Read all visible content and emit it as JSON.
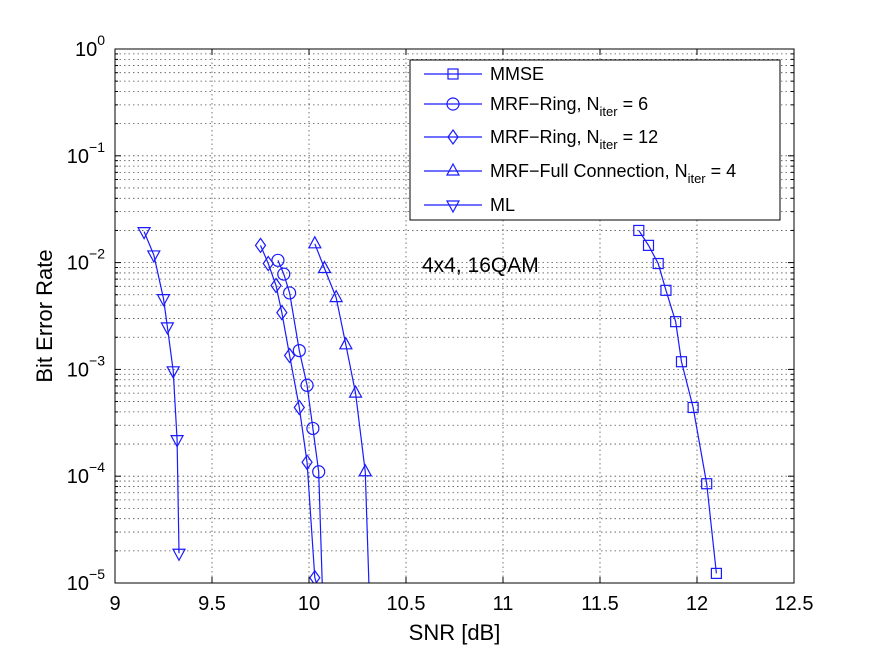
{
  "chart_data": {
    "type": "line",
    "title": "",
    "xlabel": "SNR [dB]",
    "ylabel": "Bit Error Rate",
    "xlim": [
      9,
      12.5
    ],
    "ylim": [
      1e-05,
      1
    ],
    "yscale": "log",
    "grid": true,
    "legend_position": "top-right",
    "annotation": "4x4, 16QAM",
    "x_ticks": [
      9,
      9.5,
      10,
      10.5,
      11,
      11.5,
      12,
      12.5
    ],
    "x_tick_labels": [
      "9",
      "9.5",
      "10",
      "10.5",
      "11",
      "11.5",
      "12",
      "12.5"
    ],
    "y_ticks": [
      1e-05,
      0.0001,
      0.001,
      0.01,
      0.1,
      1
    ],
    "y_tick_labels": [
      {
        "base": "10",
        "exp": "−5"
      },
      {
        "base": "10",
        "exp": "−4"
      },
      {
        "base": "10",
        "exp": "−3"
      },
      {
        "base": "10",
        "exp": "−2"
      },
      {
        "base": "10",
        "exp": "−1"
      },
      {
        "base": "10",
        "exp": "0"
      }
    ],
    "line_color": "#1a1aff",
    "series": [
      {
        "name": "MMSE",
        "legend_label": {
          "pre": "MMSE",
          "sub": "",
          "post": ""
        },
        "marker": "square",
        "x": [
          11.7,
          11.75,
          11.8,
          11.84,
          11.89,
          11.92,
          11.98,
          12.05,
          12.1
        ],
        "y": [
          0.02,
          0.0145,
          0.0098,
          0.0055,
          0.0028,
          0.00118,
          0.00044,
          8.5e-05,
          1.23e-05
        ]
      },
      {
        "name": "MRF−Ring, Niter = 6",
        "legend_label": {
          "pre": "MRF−Ring, N",
          "sub": "iter",
          "post": " = 6"
        },
        "marker": "circle",
        "x": [
          9.84,
          9.87,
          9.9,
          9.95,
          9.99,
          10.02,
          10.05,
          10.07
        ],
        "y": [
          0.0105,
          0.0078,
          0.0052,
          0.0015,
          0.00071,
          0.00028,
          0.00011,
          7.8e-06
        ]
      },
      {
        "name": "MRF−Ring, Niter = 12",
        "legend_label": {
          "pre": "MRF−Ring, N",
          "sub": "iter",
          "post": " = 12"
        },
        "marker": "diamond",
        "x": [
          9.75,
          9.79,
          9.83,
          9.86,
          9.9,
          9.95,
          9.99,
          10.03,
          10.05
        ],
        "y": [
          0.0145,
          0.0098,
          0.0061,
          0.0034,
          0.00135,
          0.00044,
          0.000135,
          1.12e-05,
          8.5e-06
        ]
      },
      {
        "name": "MRF−Full Connection, Niter = 4",
        "legend_label": {
          "pre": "MRF−Full Connection, N",
          "sub": "iter",
          "post": " = 4"
        },
        "marker": "triangle-up",
        "x": [
          10.03,
          10.08,
          10.14,
          10.19,
          10.24,
          10.29,
          10.31
        ],
        "y": [
          0.015,
          0.0088,
          0.0047,
          0.0017,
          0.0006,
          0.00011,
          8.5e-06
        ]
      },
      {
        "name": "ML",
        "legend_label": {
          "pre": "ML",
          "sub": "",
          "post": ""
        },
        "marker": "triangle-down",
        "x": [
          9.15,
          9.2,
          9.25,
          9.27,
          9.3,
          9.32,
          9.33
        ],
        "y": [
          0.0195,
          0.0118,
          0.0046,
          0.0025,
          0.00097,
          0.00022,
          1.9e-05
        ]
      }
    ]
  }
}
